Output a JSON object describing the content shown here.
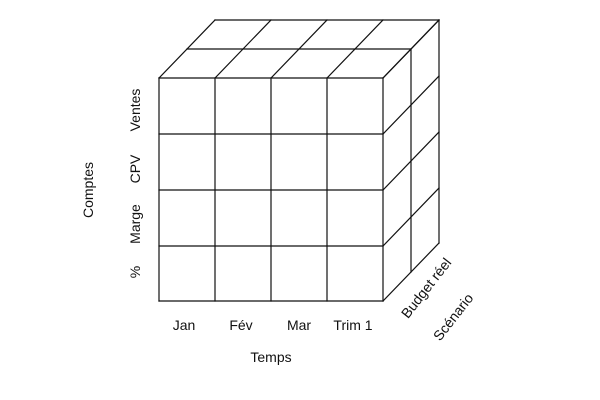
{
  "cube": {
    "time_labels": [
      "Jan",
      "Fév",
      "Mar",
      "Trim 1"
    ],
    "time_axis_label": "Temps",
    "account_labels": [
      "Ventes",
      "CPV",
      "Marge",
      "%"
    ],
    "account_axis_label": "Comptes",
    "scenario_labels": [
      "Budget réel",
      "Scénario"
    ]
  },
  "colors": {
    "line": "#111111",
    "background": "#ffffff"
  }
}
